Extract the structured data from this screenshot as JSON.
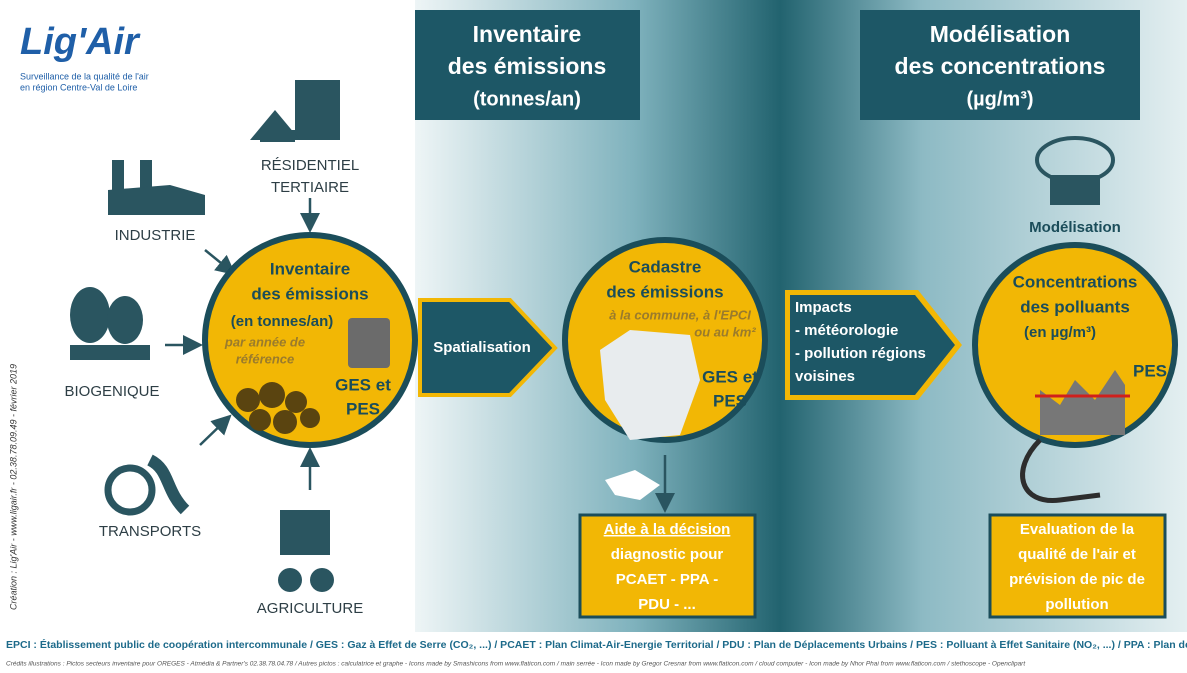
{
  "logo": {
    "name": "Lig'Air",
    "tagline": [
      "Surveillance de la qualité de l'air",
      "en région Centre-Val de Loire"
    ]
  },
  "headers": [
    {
      "lines": [
        "Inventaire",
        "des émissions",
        "(tonnes/an)"
      ]
    },
    {
      "lines": [
        "Modélisation",
        "des concentrations",
        "(µg/m³)"
      ]
    }
  ],
  "sectors": [
    {
      "lines": [
        "INDUSTRIE"
      ]
    },
    {
      "lines": [
        "RÉSIDENTIEL",
        "TERTIAIRE"
      ]
    },
    {
      "lines": [
        "BIOGENIQUE"
      ]
    },
    {
      "lines": [
        "TRANSPORTS"
      ]
    },
    {
      "lines": [
        "AGRICULTURE"
      ]
    }
  ],
  "inventory": {
    "title": [
      "Inventaire",
      "des émissions"
    ],
    "unit": "(en tonnes/an)",
    "note": [
      "par année de",
      "référence"
    ],
    "pollutants": [
      "GES et",
      "PES"
    ]
  },
  "spatialisation": "Spatialisation",
  "cadastre": {
    "title": [
      "Cadastre",
      "des émissions"
    ],
    "note": [
      "à la commune, à l'EPCI",
      "ou au km²"
    ],
    "pollutants": [
      "GES et",
      "PES"
    ]
  },
  "decision": {
    "lines": [
      "Aide à la décision",
      "diagnostic pour",
      "PCAET - PPA -",
      "PDU - ..."
    ]
  },
  "impacts": {
    "lines": [
      "Impacts",
      "- météorologie",
      "- pollution  régions",
      "voisines"
    ]
  },
  "modelisation": "Modélisation",
  "concentrations": {
    "title": [
      "Concentrations",
      "des polluants"
    ],
    "unit": "(en µg/m³)",
    "pollutant": "PES"
  },
  "evaluation": {
    "lines": [
      "Evaluation de la",
      "qualité de l'air et",
      "prévision de pic de",
      "pollution"
    ]
  },
  "side_credit": "Création : Lig'Air - www.ligair.fr - 02.38.78.09.49 - février 2019",
  "footer": {
    "glossary": "EPCI : Établissement public de coopération intercommunale / GES : Gaz à Effet de Serre (CO₂, ...) / PCAET : Plan Climat-Air-Energie Territorial / PDU : Plan de Déplacements Urbains / PES : Polluant à Effet Sanitaire (NO₂, ...) / PPA : Plan de Protection de l'Atmosphère",
    "credits": "Crédits illustrations : Pictos secteurs inventaire pour OREGES - Atmédia & Partner's 02.38.78.04.78  / Autres pictos : calculatrice et graphe - Icons made by Smashicons from www.flaticon.com / main serrée - Icon made by Gregor Cresnar from www.flaticon.com / cloud computer - Icon made by Nhor Phai from www.flaticon.com / stethoscope - Openclipart"
  }
}
